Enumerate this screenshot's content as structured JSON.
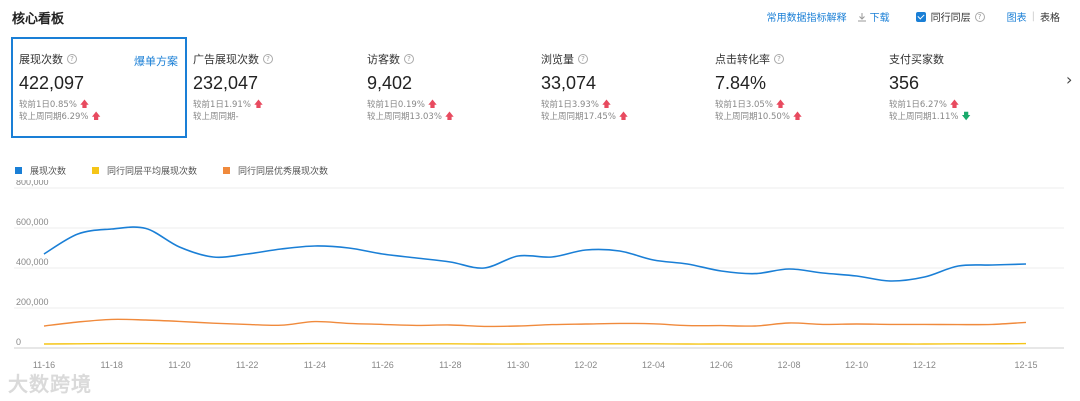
{
  "header": {
    "title": "核心看板",
    "metric_explain": "常用数据指标解释",
    "download": "下载",
    "peer_checkbox": "同行同层",
    "view_chart": "图表",
    "view_table": "表格"
  },
  "cards": [
    {
      "label": "展现次数",
      "value": "422,097",
      "extra": "爆单方案",
      "cmp1": "较前1日0.85%",
      "cmp1_dir": "up",
      "cmp2": "较上周同期6.29%",
      "cmp2_dir": "up",
      "active": true
    },
    {
      "label": "广告展现次数",
      "value": "232,047",
      "cmp1": "较前1日1.91%",
      "cmp1_dir": "up",
      "cmp2": "较上周同期-",
      "cmp2_dir": ""
    },
    {
      "label": "访客数",
      "value": "9,402",
      "cmp1": "较前1日0.19%",
      "cmp1_dir": "up",
      "cmp2": "较上周同期13.03%",
      "cmp2_dir": "up"
    },
    {
      "label": "浏览量",
      "value": "33,074",
      "cmp1": "较前1日3.93%",
      "cmp1_dir": "up",
      "cmp2": "较上周同期17.45%",
      "cmp2_dir": "up"
    },
    {
      "label": "点击转化率",
      "value": "7.84%",
      "cmp1": "较前1日3.05%",
      "cmp1_dir": "up",
      "cmp2": "较上周同期10.50%",
      "cmp2_dir": "up"
    },
    {
      "label": "支付买家数",
      "value": "356",
      "cmp1": "较前1日6.27%",
      "cmp1_dir": "up",
      "cmp2": "较上周同期1.11%",
      "cmp2_dir": "down"
    }
  ],
  "watermark": "大数跨境",
  "chart_data": {
    "type": "line",
    "ylim": [
      0,
      800000
    ],
    "y_ticks": [
      0,
      200000,
      400000,
      600000,
      800000
    ],
    "y_tick_labels": [
      "0",
      "200,000",
      "400,000",
      "600,000",
      "800,000"
    ],
    "x": [
      "11-16",
      "11-17",
      "11-18",
      "11-19",
      "11-20",
      "11-21",
      "11-22",
      "11-23",
      "11-24",
      "11-25",
      "11-26",
      "11-27",
      "11-28",
      "11-29",
      "11-30",
      "12-01",
      "12-02",
      "12-03",
      "12-04",
      "12-05",
      "12-06",
      "12-07",
      "12-08",
      "12-09",
      "12-10",
      "12-11",
      "12-12",
      "12-13",
      "12-14",
      "12-15"
    ],
    "x_tick_labels": [
      "11-16",
      "11-18",
      "11-20",
      "11-22",
      "11-24",
      "11-26",
      "11-28",
      "11-30",
      "12-02",
      "12-04",
      "12-06",
      "12-08",
      "12-10",
      "12-12",
      "12-15"
    ],
    "grid": true,
    "legend_position": "top-left",
    "series": [
      {
        "name": "展现次数",
        "color": "#1a7fd6",
        "values": [
          470000,
          570000,
          595000,
          598000,
          505000,
          455000,
          470000,
          495000,
          510000,
          500000,
          470000,
          450000,
          430000,
          400000,
          460000,
          455000,
          490000,
          485000,
          440000,
          420000,
          385000,
          372000,
          395000,
          375000,
          360000,
          335000,
          355000,
          410000,
          415000,
          420000
        ]
      },
      {
        "name": "同行同层平均展现次数",
        "color": "#f5c518",
        "values": [
          20000,
          21000,
          22000,
          22000,
          21000,
          21000,
          21000,
          21000,
          22000,
          22000,
          21000,
          21000,
          21000,
          20000,
          20000,
          21000,
          21000,
          21000,
          21000,
          20000,
          20000,
          20000,
          20000,
          20000,
          20000,
          20000,
          20000,
          21000,
          21000,
          22000
        ]
      },
      {
        "name": "同行同层优秀展现次数",
        "color": "#f08a3c",
        "values": [
          110000,
          130000,
          143000,
          140000,
          133000,
          124000,
          118000,
          114000,
          132000,
          123000,
          118000,
          113000,
          115000,
          108000,
          110000,
          117000,
          120000,
          123000,
          121000,
          112000,
          112000,
          110000,
          125000,
          118000,
          120000,
          118000,
          118000,
          117000,
          118000,
          128000
        ]
      }
    ]
  }
}
